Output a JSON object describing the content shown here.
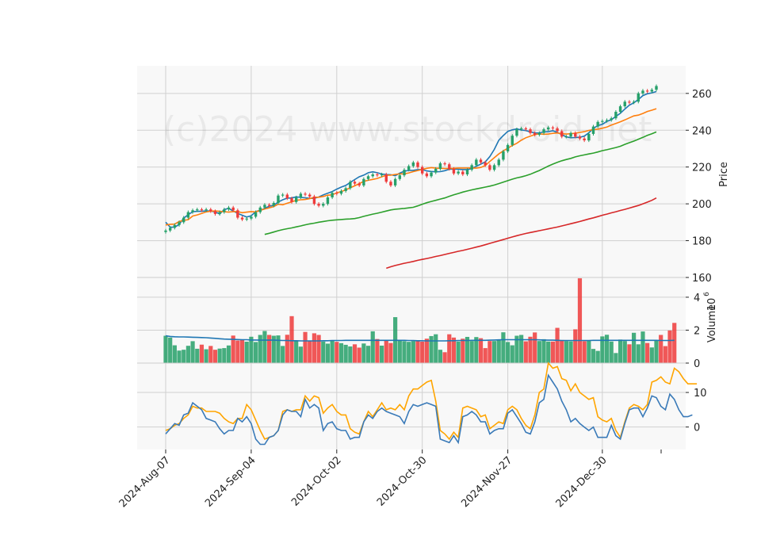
{
  "watermark": "(c)2024 www.stockdroid.net",
  "colors": {
    "up": "#26a069",
    "down": "#ef3b3b",
    "bg": "#f8f8f8",
    "grid": "#d0d0d0",
    "ma_blue": "#1f77b4",
    "ma_orange": "#ff7f0e",
    "ma_green": "#2ca02c",
    "ma_red": "#d62728",
    "vol_ma": "#1f77b4",
    "osc_fast": "#3a7ab8",
    "osc_slow": "#ffa500"
  },
  "chart_data": {
    "type": "candlestick",
    "x_tick_labels": [
      "2024-Aug-07",
      "2024-Sep-04",
      "2024-Oct-02",
      "2024-Oct-30",
      "2024-Nov-27",
      "2024-Dec-30"
    ],
    "price_panel": {
      "ylabel": "Price",
      "ylim": [
        160,
        275
      ],
      "yticks": [
        160,
        180,
        200,
        220,
        240,
        260
      ],
      "closes": [
        185.5,
        187.0,
        188.5,
        190.0,
        192.5,
        195.5,
        196.5,
        197.0,
        196.5,
        197.0,
        196.0,
        194.5,
        195.5,
        197.0,
        198.0,
        196.5,
        192.5,
        191.5,
        192.0,
        193.0,
        195.5,
        198.0,
        199.5,
        199.0,
        200.5,
        204.5,
        205.0,
        203.0,
        201.0,
        203.5,
        205.5,
        205.0,
        204.0,
        200.0,
        199.0,
        200.0,
        203.5,
        206.0,
        205.5,
        207.0,
        208.5,
        212.0,
        211.0,
        210.0,
        213.5,
        215.0,
        216.0,
        215.5,
        216.0,
        212.0,
        210.0,
        213.5,
        215.5,
        218.5,
        220.5,
        222.5,
        220.0,
        216.5,
        215.0,
        217.0,
        219.0,
        222.0,
        221.5,
        219.0,
        216.5,
        217.5,
        216.0,
        218.5,
        221.0,
        224.0,
        222.5,
        221.0,
        218.5,
        221.0,
        224.0,
        228.5,
        232.0,
        237.0,
        240.5,
        241.0,
        240.5,
        238.5,
        237.5,
        238.5,
        240.5,
        241.5,
        241.0,
        239.5,
        236.5,
        236.5,
        238.5,
        236.5,
        235.5,
        234.5,
        238.0,
        242.0,
        244.5,
        245.0,
        245.5,
        246.5,
        250.0,
        253.0,
        255.5,
        255.0,
        255.5,
        260.0,
        261.5,
        261.0,
        262.0,
        264.0
      ],
      "ma": [
        {
          "color": "#1f77b4",
          "values": [
            190.0,
            187.3,
            187.3,
            188.8,
            192.2,
            194.1,
            195.7,
            195.9,
            195.9,
            196.2,
            196.1,
            195.6,
            194.5,
            196.9,
            197.5,
            196.1,
            194.8,
            193.8,
            192.8,
            193.5,
            195.8,
            196.5,
            197.5,
            198.7,
            199.2,
            201.0,
            202.2,
            203.1,
            203.2,
            203.8,
            203.5,
            203.3,
            203.0,
            203.0,
            203.7,
            204.9,
            205.8,
            206.7,
            208.0,
            209.1,
            210.0,
            211.6,
            213.2,
            214.7,
            215.6,
            216.9,
            217.4,
            216.9,
            216.2,
            215.9,
            215.8,
            215.3,
            216.7,
            217.7,
            218.2,
            218.2,
            218.6,
            218.6,
            217.9,
            217.6,
            217.4,
            217.5,
            218.0,
            218.8,
            218.9,
            218.8,
            218.6,
            218.6,
            219.2,
            220.4,
            221.6,
            222.8,
            225.7,
            229.6,
            234.5,
            237.1,
            239.4,
            240.2,
            240.7,
            240.1,
            239.8,
            239.1,
            238.5,
            238.6,
            239.1,
            239.2,
            239.7,
            238.8,
            237.6,
            236.4,
            235.9,
            236.0,
            236.2,
            236.8,
            238.6,
            241.0,
            242.5,
            243.2,
            244.8,
            245.7,
            247.5,
            249.2,
            251.5,
            253.6,
            254.9,
            256.7,
            258.8,
            259.8,
            260.3,
            261.0
          ]
        },
        {
          "color": "#ff7f0e",
          "values": [
            188.5,
            188.9,
            189.0,
            190.4,
            191.0,
            191.4,
            193.4,
            194.0,
            194.8,
            195.6,
            196.0,
            196.2,
            195.9,
            195.7,
            195.5,
            195.8,
            195.8,
            195.2,
            195.5,
            195.8,
            195.6,
            196.5,
            197.2,
            197.8,
            198.5,
            199.8,
            199.5,
            200.3,
            201.1,
            201.9,
            202.2,
            202.4,
            202.8,
            203.6,
            203.6,
            204.0,
            204.7,
            204.9,
            206.0,
            206.7,
            207.6,
            208.7,
            209.8,
            211.0,
            212.2,
            212.8,
            213.3,
            213.8,
            214.7,
            215.5,
            215.6,
            216.0,
            216.3,
            216.3,
            216.8,
            217.5,
            218.1,
            218.7,
            219.3,
            219.7,
            219.4,
            219.3,
            219.2,
            219.2,
            219.3,
            219.5,
            219.5,
            219.5,
            219.5,
            219.4,
            219.8,
            220.8,
            223.0,
            225.1,
            227.1,
            228.8,
            230.2,
            231.7,
            232.9,
            234.6,
            235.9,
            236.8,
            237.6,
            238.1,
            237.8,
            237.9,
            238.3,
            238.5,
            238.1,
            237.9,
            238.1,
            238.4,
            238.8,
            239.2,
            239.9,
            240.3,
            240.6,
            241.1,
            241.7,
            242.8,
            243.7,
            244.6,
            245.6,
            246.7,
            247.8,
            248.2,
            249.1,
            250.2,
            250.9,
            251.7
          ]
        },
        {
          "color": "#2ca02c",
          "values": [
            183.4,
            184.0,
            184.7,
            185.4,
            186.0,
            186.5,
            186.9,
            187.5,
            188.0,
            188.6,
            189.1,
            189.5,
            190.0,
            190.4,
            190.8,
            191.1,
            191.3,
            191.5,
            191.7,
            191.8,
            192.0,
            192.5,
            193.2,
            193.8,
            194.4,
            194.9,
            195.5,
            196.1,
            196.7,
            197.1,
            197.3,
            197.5,
            197.8,
            198.1,
            198.9,
            199.8,
            200.6,
            201.3,
            201.9,
            202.6,
            203.2,
            204.1,
            204.9,
            205.6,
            206.4,
            207.0,
            207.6,
            208.1,
            208.6,
            209.1,
            209.6,
            210.2,
            211.0,
            211.8,
            212.6,
            213.4,
            214.1,
            214.6,
            215.3,
            216.1,
            217.1,
            218.1,
            219.3,
            220.5,
            221.6,
            222.6,
            223.4,
            224.1,
            224.7,
            225.5,
            226.1,
            226.6,
            227.1,
            227.6,
            228.2,
            228.9,
            229.4,
            230.0,
            230.6,
            231.3,
            232.3,
            233.2,
            234.1,
            235.1,
            236.1,
            237.2,
            238.1,
            239.1
          ]
        },
        {
          "color": "#d62728",
          "values": [
            165.0,
            165.8,
            166.5,
            167.1,
            167.7,
            168.2,
            168.7,
            169.3,
            169.8,
            170.3,
            170.8,
            171.4,
            171.9,
            172.5,
            173.1,
            173.6,
            174.2,
            174.7,
            175.3,
            175.9,
            176.5,
            177.1,
            177.8,
            178.5,
            179.2,
            179.9,
            180.6,
            181.3,
            182.0,
            182.7,
            183.3,
            183.9,
            184.4,
            184.9,
            185.4,
            185.9,
            186.4,
            186.9,
            187.4,
            188.0,
            188.6,
            189.2,
            189.8,
            190.4,
            191.1,
            191.8,
            192.4,
            193.1,
            193.8,
            194.4,
            195.1,
            195.7,
            196.4,
            197.0,
            197.7,
            198.4,
            199.1,
            200.0,
            200.9,
            201.9,
            203.2
          ]
        }
      ]
    },
    "volume_panel": {
      "ylabel": "Volume",
      "exponent": "6",
      "ylim": [
        0,
        5.2
      ],
      "yticks": [
        0,
        2,
        4
      ],
      "values": [
        1.66,
        1.55,
        1.08,
        0.76,
        0.81,
        1.05,
        1.33,
        0.87,
        1.12,
        0.84,
        1.04,
        0.81,
        0.88,
        0.91,
        1.07,
        1.67,
        1.37,
        1.43,
        1.3,
        1.6,
        1.28,
        1.71,
        1.95,
        1.71,
        1.66,
        1.68,
        1.04,
        1.72,
        2.85,
        1.38,
        1.0,
        1.89,
        1.33,
        1.81,
        1.71,
        1.31,
        1.18,
        1.38,
        1.29,
        1.21,
        1.11,
        1.01,
        1.14,
        0.94,
        1.19,
        1.05,
        1.93,
        1.46,
        1.06,
        1.36,
        1.22,
        2.79,
        1.35,
        1.33,
        1.29,
        1.34,
        1.33,
        1.3,
        1.48,
        1.64,
        1.75,
        0.81,
        0.66,
        1.75,
        1.55,
        1.31,
        1.48,
        1.59,
        1.34,
        1.58,
        1.51,
        0.91,
        1.34,
        1.34,
        1.39,
        1.87,
        1.28,
        1.08,
        1.66,
        1.71,
        1.32,
        1.6,
        1.86,
        1.34,
        1.45,
        1.31,
        1.31,
        2.14,
        1.4,
        1.34,
        1.32,
        2.05,
        5.15,
        1.33,
        1.36,
        0.86,
        0.74,
        1.62,
        1.72,
        1.31,
        0.61,
        1.43,
        1.34,
        1.14,
        1.84,
        1.14,
        1.92,
        1.22,
        0.95,
        1.39,
        1.71,
        1.03,
        1.98,
        2.44
      ],
      "ma_values": [
        1.66,
        1.62,
        1.6,
        1.59,
        1.59,
        1.58,
        1.57,
        1.56,
        1.55,
        1.54,
        1.52,
        1.5,
        1.48,
        1.46,
        1.45,
        1.44,
        1.43,
        1.42,
        1.42,
        1.4,
        1.4,
        1.39,
        1.39,
        1.39,
        1.39,
        1.38,
        1.37,
        1.37,
        1.36,
        1.36,
        1.35,
        1.35,
        1.35,
        1.35,
        1.35,
        1.36,
        1.36,
        1.37,
        1.37,
        1.37,
        1.38,
        1.38,
        1.38,
        1.38,
        1.38,
        1.38,
        1.38,
        1.38,
        1.38,
        1.38,
        1.38,
        1.38,
        1.38,
        1.38,
        1.37,
        1.37,
        1.36,
        1.36,
        1.35,
        1.35,
        1.35,
        1.35,
        1.35,
        1.36,
        1.36,
        1.37,
        1.37,
        1.37,
        1.38,
        1.38,
        1.38,
        1.38,
        1.39,
        1.4,
        1.41,
        1.42,
        1.42,
        1.42,
        1.42,
        1.42,
        1.42,
        1.42,
        1.42,
        1.41,
        1.4,
        1.39,
        1.39,
        1.38,
        1.37,
        1.37,
        1.37,
        1.37,
        1.37,
        1.37,
        1.37,
        1.38,
        1.38,
        1.38,
        1.38,
        1.38,
        1.38,
        1.38,
        1.38,
        1.38,
        1.38,
        1.38,
        1.38,
        1.38,
        1.38,
        1.38,
        1.37,
        1.37,
        1.37,
        1.38
      ]
    },
    "oscillator_panel": {
      "ylim": [
        -6.5,
        18.5
      ],
      "yticks": [
        0,
        10
      ],
      "fast": [
        -2.0,
        -0.5,
        1.0,
        0.5,
        3.5,
        4.0,
        7.0,
        6.0,
        5.0,
        2.5,
        2.0,
        1.5,
        -0.5,
        -2.0,
        -1.0,
        -1.0,
        2.5,
        1.5,
        3.0,
        1.0,
        -3.5,
        -5.0,
        -5.0,
        -3.0,
        -2.5,
        -1.0,
        3.5,
        5.0,
        4.5,
        4.5,
        3.0,
        8.0,
        5.5,
        6.5,
        5.5,
        -1.0,
        1.0,
        1.5,
        -0.5,
        -1.0,
        -1.0,
        -3.5,
        -3.0,
        -3.0,
        1.5,
        3.5,
        2.5,
        4.5,
        5.5,
        4.5,
        4.0,
        3.5,
        3.0,
        1.0,
        4.5,
        6.5,
        6.0,
        6.5,
        7.0,
        6.5,
        6.0,
        -3.5,
        -4.0,
        -4.5,
        -2.5,
        -4.5,
        3.0,
        3.5,
        4.5,
        3.5,
        1.5,
        1.5,
        -2.0,
        -1.0,
        -0.5,
        -0.5,
        4.0,
        5.0,
        3.0,
        1.0,
        -1.5,
        -2.0,
        1.5,
        7.0,
        8.0,
        15.0,
        13.0,
        11.0,
        7.5,
        5.0,
        1.5,
        2.5,
        1.0,
        0.0,
        -1.0,
        0.0,
        -3.0,
        -3.0,
        -3.0,
        0.5,
        -2.5,
        -3.5,
        1.0,
        5.0,
        5.5,
        5.5,
        3.0,
        5.5,
        9.0,
        8.5,
        6.0,
        5.0,
        9.5,
        8.0,
        5.0,
        3.0,
        3.0,
        3.5
      ],
      "slow": [
        -1.0,
        -0.5,
        0.5,
        1.0,
        2.5,
        3.5,
        6.0,
        5.5,
        5.5,
        4.5,
        4.5,
        4.5,
        4.0,
        2.5,
        1.5,
        1.0,
        2.5,
        2.5,
        6.5,
        5.0,
        2.0,
        -1.0,
        -3.5,
        -3.0,
        -2.5,
        -1.0,
        4.5,
        5.0,
        4.5,
        5.0,
        5.0,
        9.0,
        7.5,
        9.0,
        8.5,
        4.0,
        5.5,
        6.5,
        4.5,
        3.5,
        3.5,
        -0.5,
        -1.5,
        -2.0,
        1.5,
        4.5,
        3.0,
        5.0,
        7.0,
        5.0,
        5.5,
        5.0,
        6.5,
        5.0,
        9.0,
        11.0,
        11.0,
        12.0,
        13.0,
        13.5,
        7.5,
        -1.0,
        -2.0,
        -3.5,
        -1.5,
        -3.0,
        5.5,
        6.0,
        5.5,
        5.0,
        3.0,
        3.5,
        -0.5,
        0.5,
        1.5,
        1.0,
        5.0,
        6.0,
        5.0,
        2.5,
        0.5,
        -0.5,
        3.5,
        10.0,
        11.0,
        18.5,
        17.0,
        17.5,
        14.0,
        13.5,
        10.5,
        12.5,
        10.0,
        9.0,
        8.0,
        8.5,
        3.0,
        2.0,
        1.5,
        2.5,
        -1.0,
        -3.0,
        1.5,
        5.5,
        6.5,
        6.0,
        5.0,
        6.5,
        13.0,
        13.5,
        14.5,
        13.0,
        12.5,
        17.0,
        16.0,
        14.0,
        12.5,
        12.5,
        12.5
      ]
    }
  }
}
